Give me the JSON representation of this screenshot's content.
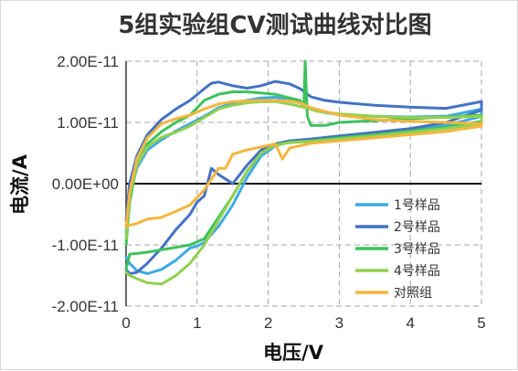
{
  "chart_data": {
    "type": "line",
    "title": "5组实验组CV测试曲线对比图",
    "xlabel": "电压/V",
    "ylabel": "电流/A",
    "xlim": [
      0,
      5
    ],
    "ylim": [
      -2e-11,
      2e-11
    ],
    "x_ticks": [
      0,
      1,
      2,
      3,
      4,
      5
    ],
    "x_tick_labels": [
      "0",
      "1",
      "2",
      "3",
      "4",
      "5"
    ],
    "y_ticks": [
      -2e-11,
      -1e-11,
      0,
      1e-11,
      2e-11
    ],
    "y_tick_labels": [
      "-2.00E-11",
      "-1.00E-11",
      "0.00E+00",
      "1.00E-11",
      "2.00E-11"
    ],
    "grid": "dashed",
    "legend_position": "right",
    "series": [
      {
        "name": "1号样品",
        "color": "#3fa9e6",
        "x": [
          0,
          0.05,
          0.15,
          0.3,
          0.5,
          0.7,
          0.9,
          1.1,
          1.3,
          1.5,
          1.7,
          1.9,
          2.1,
          2.3,
          2.45,
          2.6,
          2.8,
          3.0,
          3.5,
          4.0,
          4.5,
          5.0,
          5.0,
          4.5,
          4.0,
          3.5,
          3.0,
          2.6,
          2.3,
          2.1,
          1.9,
          1.7,
          1.5,
          1.3,
          1.1,
          1.0,
          0.9,
          0.7,
          0.5,
          0.3,
          0.15,
          0.05,
          0
        ],
        "y": [
          -8e-12,
          -2e-12,
          2.5e-12,
          5.5e-12,
          7.2e-12,
          8.6e-12,
          9.8e-12,
          1.1e-11,
          1.24e-11,
          1.31e-11,
          1.36e-11,
          1.4e-11,
          1.41e-11,
          1.38e-11,
          1.32e-11,
          1.22e-11,
          1.16e-11,
          1.13e-11,
          1.1e-11,
          1.09e-11,
          1.1e-11,
          1.22e-11,
          1.1e-11,
          9.5e-12,
          8.8e-12,
          8.2e-12,
          7.6e-12,
          7.2e-12,
          6.8e-12,
          6.2e-12,
          4.5e-12,
          1e-12,
          -3.5e-12,
          -7e-12,
          -9.6e-12,
          -1.02e-11,
          -1.05e-11,
          -1.25e-11,
          -1.4e-11,
          -1.47e-11,
          -1.42e-11,
          -1.3e-11,
          -1.2e-11
        ]
      },
      {
        "name": "2号样品",
        "color": "#4472c4",
        "x": [
          0,
          0.05,
          0.15,
          0.3,
          0.5,
          0.7,
          0.9,
          1.1,
          1.2,
          1.3,
          1.5,
          1.7,
          1.9,
          2.1,
          2.3,
          2.45,
          2.6,
          2.8,
          3.0,
          3.5,
          4.0,
          4.5,
          5.0,
          5.0,
          4.5,
          4.0,
          3.5,
          3.0,
          2.6,
          2.3,
          2.1,
          1.9,
          1.7,
          1.5,
          1.3,
          1.2,
          1.1,
          1.0,
          0.9,
          0.7,
          0.5,
          0.3,
          0.15,
          0.05,
          0
        ],
        "y": [
          -6e-12,
          0,
          4.5e-12,
          8e-12,
          1.05e-11,
          1.22e-11,
          1.36e-11,
          1.55e-11,
          1.64e-11,
          1.66e-11,
          1.6e-11,
          1.56e-11,
          1.6e-11,
          1.67e-11,
          1.63e-11,
          1.55e-11,
          1.42e-11,
          1.36e-11,
          1.33e-11,
          1.28e-11,
          1.25e-11,
          1.23e-11,
          1.34e-11,
          1.2e-11,
          1e-11,
          9e-12,
          8.4e-12,
          7.8e-12,
          7.3e-12,
          7e-12,
          6.5e-12,
          5.5e-12,
          3e-12,
          0,
          1.5e-12,
          2.5e-12,
          -2e-12,
          -3e-12,
          -5e-12,
          -7.5e-12,
          -1.05e-11,
          -1.3e-11,
          -1.45e-11,
          -1.47e-11,
          -1.4e-11
        ]
      },
      {
        "name": "3号样品",
        "color": "#3cc25d",
        "x": [
          0,
          0.05,
          0.15,
          0.3,
          0.5,
          0.7,
          0.9,
          1.1,
          1.3,
          1.5,
          1.7,
          1.9,
          2.1,
          2.3,
          2.45,
          2.5,
          2.52,
          2.55,
          2.6,
          2.8,
          3.0,
          3.5,
          4.0,
          4.5,
          5.0,
          5.0,
          4.5,
          4.0,
          3.5,
          3.0,
          2.6,
          2.3,
          2.1,
          1.9,
          1.7,
          1.5,
          1.3,
          1.1,
          0.9,
          0.7,
          0.5,
          0.3,
          0.15,
          0.05,
          0
        ],
        "y": [
          -1e-11,
          -3e-12,
          3e-12,
          6.5e-12,
          8.5e-12,
          1e-11,
          1.12e-11,
          1.36e-11,
          1.46e-11,
          1.5e-11,
          1.5e-11,
          1.48e-11,
          1.46e-11,
          1.4e-11,
          1.36e-11,
          1.25e-11,
          2e-11,
          1.1e-11,
          9.5e-12,
          9.5e-12,
          1e-11,
          1.03e-11,
          1.06e-11,
          1.09e-11,
          1.12e-11,
          1.02e-11,
          9.2e-12,
          8.6e-12,
          8e-12,
          7.5e-12,
          7e-12,
          6.8e-12,
          6.3e-12,
          5e-12,
          2e-12,
          -2e-12,
          -5.5e-12,
          -9e-12,
          -1e-11,
          -1.04e-11,
          -1.08e-11,
          -1.12e-11,
          -1.14e-11,
          -1.15e-11,
          -1.4e-11
        ]
      },
      {
        "name": "4号样品",
        "color": "#92d050",
        "x": [
          0,
          0.05,
          0.15,
          0.3,
          0.5,
          0.7,
          0.9,
          1.1,
          1.3,
          1.5,
          1.7,
          1.9,
          2.1,
          2.3,
          2.5,
          2.7,
          3.0,
          3.5,
          4.0,
          4.5,
          5.0,
          5.0,
          4.5,
          4.0,
          3.5,
          3.0,
          2.6,
          2.3,
          2.1,
          1.9,
          1.7,
          1.5,
          1.3,
          1.1,
          0.9,
          0.7,
          0.5,
          0.3,
          0.15,
          0.05,
          0
        ],
        "y": [
          -9e-12,
          -2e-12,
          3e-12,
          6e-12,
          7.6e-12,
          8.4e-12,
          9.4e-12,
          1.08e-11,
          1.22e-11,
          1.28e-11,
          1.32e-11,
          1.34e-11,
          1.34e-11,
          1.3e-11,
          1.25e-11,
          1.18e-11,
          1.14e-11,
          1.1e-11,
          1.08e-11,
          1.08e-11,
          1.1e-11,
          9.8e-12,
          9e-12,
          8.4e-12,
          7.8e-12,
          7.3e-12,
          6.9e-12,
          6.7e-12,
          6.3e-12,
          5e-12,
          2e-12,
          -2e-12,
          -6e-12,
          -1e-11,
          -1.3e-11,
          -1.5e-11,
          -1.64e-11,
          -1.62e-11,
          -1.55e-11,
          -1.5e-11,
          -1.45e-11
        ]
      },
      {
        "name": "对照组",
        "color": "#f4b63f",
        "x": [
          0,
          0.05,
          0.15,
          0.3,
          0.5,
          0.7,
          0.9,
          1.1,
          1.3,
          1.5,
          1.7,
          1.9,
          2.1,
          2.3,
          2.45,
          2.6,
          2.8,
          3.0,
          3.5,
          4.0,
          4.5,
          5.0,
          5.0,
          4.5,
          4.0,
          3.5,
          3.0,
          2.6,
          2.3,
          2.2,
          2.1,
          1.9,
          1.7,
          1.5,
          1.4,
          1.3,
          1.1,
          0.9,
          0.7,
          0.5,
          0.3,
          0.15,
          0.05,
          0
        ],
        "y": [
          -7e-12,
          -1.5e-12,
          4e-12,
          7.5e-12,
          9.8e-12,
          1.06e-11,
          1.12e-11,
          1.22e-11,
          1.3e-11,
          1.34e-11,
          1.35e-11,
          1.36e-11,
          1.36e-11,
          1.35e-11,
          1.32e-11,
          1.24e-11,
          1.18e-11,
          1.12e-11,
          1.05e-11,
          1.02e-11,
          1e-11,
          9.8e-12,
          9.4e-12,
          8.5e-12,
          8e-12,
          7.5e-12,
          7e-12,
          6.6e-12,
          5.8e-12,
          4e-12,
          6.5e-12,
          6e-12,
          5.5e-12,
          4.8e-12,
          2.5e-12,
          2.5e-12,
          -1e-12,
          -3.5e-12,
          -4.5e-12,
          -5.5e-12,
          -5.8e-12,
          -6.5e-12,
          -6.8e-12,
          -7e-12
        ]
      }
    ]
  }
}
